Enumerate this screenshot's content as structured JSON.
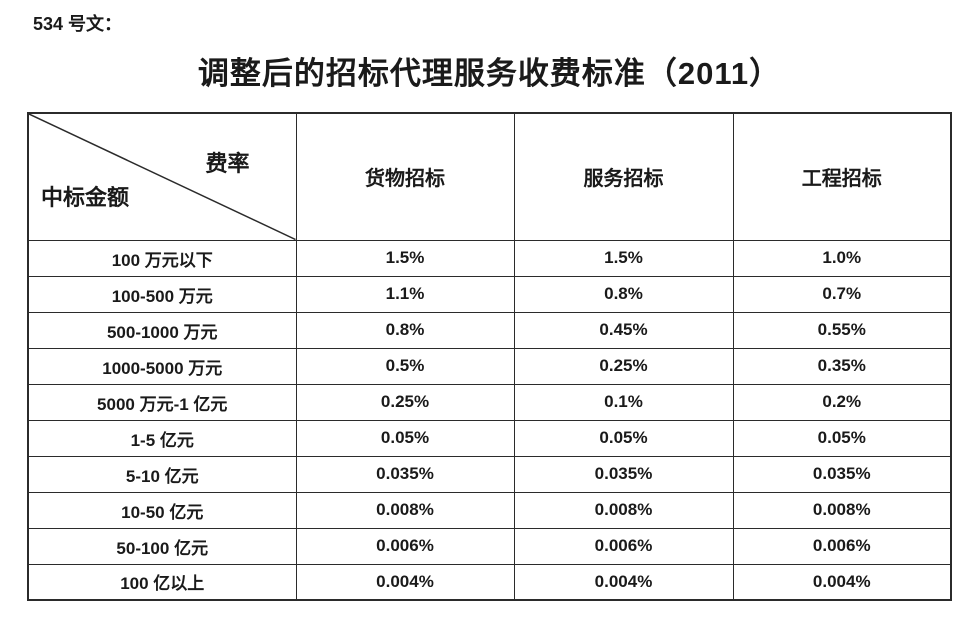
{
  "doc_label": "534 号文：",
  "title": "调整后的招标代理服务收费标准（2011）",
  "table": {
    "corner": {
      "top_right": "费率",
      "bottom_left": "中标金额"
    },
    "columns": [
      "货物招标",
      "服务招标",
      "工程招标"
    ],
    "rows": [
      {
        "label": "100 万元以下",
        "values": [
          "1.5%",
          "1.5%",
          "1.0%"
        ]
      },
      {
        "label": "100-500 万元",
        "values": [
          "1.1%",
          "0.8%",
          "0.7%"
        ]
      },
      {
        "label": "500-1000 万元",
        "values": [
          "0.8%",
          "0.45%",
          "0.55%"
        ]
      },
      {
        "label": "1000-5000 万元",
        "values": [
          "0.5%",
          "0.25%",
          "0.35%"
        ]
      },
      {
        "label": "5000 万元-1 亿元",
        "values": [
          "0.25%",
          "0.1%",
          "0.2%"
        ]
      },
      {
        "label": "1-5 亿元",
        "values": [
          "0.05%",
          "0.05%",
          "0.05%"
        ]
      },
      {
        "label": "5-10 亿元",
        "values": [
          "0.035%",
          "0.035%",
          "0.035%"
        ]
      },
      {
        "label": "10-50 亿元",
        "values": [
          "0.008%",
          "0.008%",
          "0.008%"
        ]
      },
      {
        "label": "50-100 亿元",
        "values": [
          "0.006%",
          "0.006%",
          "0.006%"
        ]
      },
      {
        "label": "100 亿以上",
        "values": [
          "0.004%",
          "0.004%",
          "0.004%"
        ]
      }
    ]
  },
  "colors": {
    "text": "#1a1a1a",
    "border": "#2b2b2b",
    "background": "#ffffff"
  }
}
